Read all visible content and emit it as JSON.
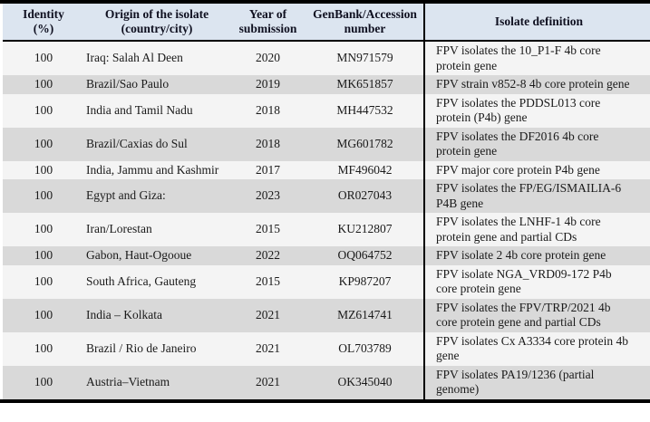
{
  "colors": {
    "header_bg": "#dce5f0",
    "row_light": "#f4f4f4",
    "row_dark": "#d9d9d9",
    "border": "#000000",
    "text": "#1a1a1a",
    "header_text": "#0f1020"
  },
  "table": {
    "columns": [
      {
        "key": "identity",
        "label": "Identity\n(%)"
      },
      {
        "key": "origin",
        "label": "Origin of the isolate\n(country/city)"
      },
      {
        "key": "year",
        "label": "Year of\nsubmission"
      },
      {
        "key": "accession",
        "label": "GenBank/Accession\nnumber"
      },
      {
        "key": "definition",
        "label": "Isolate definition"
      }
    ],
    "rows": [
      {
        "identity": "100",
        "origin": "Iraq: Salah Al Deen",
        "year": "2020",
        "accession": "MN971579",
        "definition": "FPV isolates the 10_P1-F 4b core protein gene"
      },
      {
        "identity": "100",
        "origin": "Brazil/Sao Paulo",
        "year": "2019",
        "accession": "MK651857",
        "definition": "FPV strain v852-8 4b core protein gene"
      },
      {
        "identity": "100",
        "origin": "India and Tamil Nadu",
        "year": "2018",
        "accession": "MH447532",
        "definition": "FPV isolates the PDDSL013 core protein (P4b) gene"
      },
      {
        "identity": "100",
        "origin": "Brazil/Caxias do Sul",
        "year": "2018",
        "accession": "MG601782",
        "definition": "FPV isolates the DF2016 4b core protein gene"
      },
      {
        "identity": "100",
        "origin": "India, Jammu and Kashmir",
        "year": "2017",
        "accession": "MF496042",
        "definition": "FPV major core protein P4b gene"
      },
      {
        "identity": "100",
        "origin": "Egypt and Giza:",
        "year": "2023",
        "accession": "OR027043",
        "definition": "FPV isolates the FP/EG/ISMAILIA-6 P4B gene"
      },
      {
        "identity": "100",
        "origin": "Iran/Lorestan",
        "year": "2015",
        "accession": "KU212807",
        "definition": "FPV isolates the LNHF-1 4b core protein gene and partial CDs"
      },
      {
        "identity": "100",
        "origin": "Gabon, Haut-Ogooue",
        "year": "2022",
        "accession": "OQ064752",
        "definition": "FPV isolate 2 4b core protein gene"
      },
      {
        "identity": "100",
        "origin": "South Africa, Gauteng",
        "year": "2015",
        "accession": "KP987207",
        "definition": "FPV isolate NGA_VRD09-172 P4b core protein gene"
      },
      {
        "identity": "100",
        "origin": "India – Kolkata",
        "year": "2021",
        "accession": "MZ614741",
        "definition": "FPV isolates the FPV/TRP/2021 4b core protein gene and partial CDs"
      },
      {
        "identity": "100",
        "origin": "Brazil / Rio de Janeiro",
        "year": "2021",
        "accession": "OL703789",
        "definition": "FPV isolates Cx A3334 core protein 4b gene"
      },
      {
        "identity": "100",
        "origin": "Austria–Vietnam",
        "year": "2021",
        "accession": "OK345040",
        "definition": "FPV isolates PA19/1236 (partial genome)"
      }
    ]
  }
}
